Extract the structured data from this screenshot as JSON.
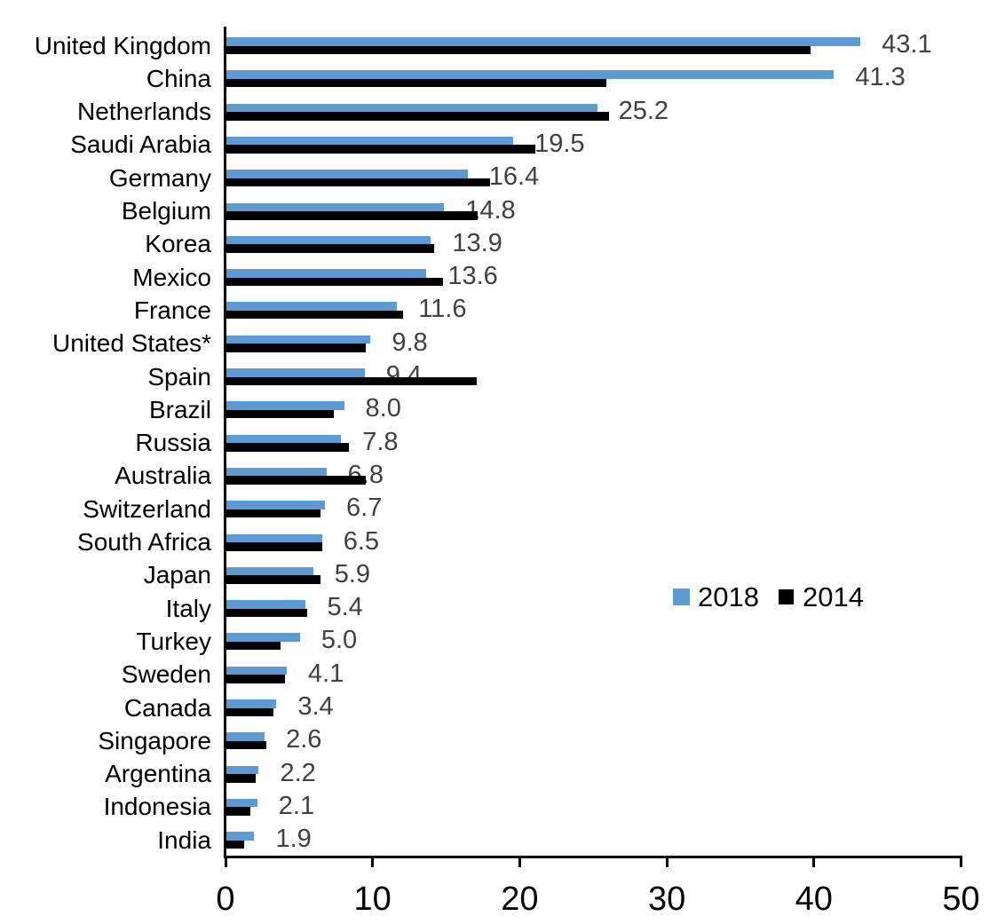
{
  "chart_data": {
    "type": "bar",
    "orientation": "horizontal",
    "title": "",
    "xlabel": "",
    "ylabel": "",
    "xlim": [
      0,
      50
    ],
    "x_ticks": [
      "0",
      "10",
      "20",
      "30",
      "40",
      "50"
    ],
    "grid": false,
    "legend_position": "middle-right",
    "categories": [
      "United Kingdom",
      "China",
      "Netherlands",
      "Saudi Arabia",
      "Germany",
      "Belgium",
      "Korea",
      "Mexico",
      "France",
      "United States*",
      "Spain",
      "Brazil",
      "Russia",
      "Australia",
      "Switzerland",
      "South Africa",
      "Japan",
      "Italy",
      "Turkey",
      "Sweden",
      "Canada",
      "Singapore",
      "Argentina",
      "Indonesia",
      "India"
    ],
    "series": [
      {
        "name": "2018",
        "color": "#5B9BD5",
        "values": [
          43.1,
          41.3,
          25.2,
          19.5,
          16.4,
          14.8,
          13.9,
          13.6,
          11.6,
          9.8,
          9.4,
          8.0,
          7.8,
          6.8,
          6.7,
          6.5,
          5.9,
          5.4,
          5.0,
          4.1,
          3.4,
          2.6,
          2.2,
          2.1,
          1.9
        ]
      },
      {
        "name": "2014",
        "color": "#000000",
        "values": [
          39.7,
          25.8,
          26.0,
          21.0,
          17.9,
          17.1,
          14.1,
          14.7,
          12.0,
          9.5,
          17.0,
          7.3,
          8.3,
          9.5,
          6.4,
          6.5,
          6.4,
          5.5,
          3.7,
          4.0,
          3.2,
          2.7,
          2.0,
          1.6,
          1.2
        ]
      }
    ],
    "data_labels": {
      "series": "2018",
      "color": "#404040",
      "values": [
        "43.1",
        "41.3",
        "25.2",
        "19.5",
        "16.4",
        "14.8",
        "13.9",
        "13.6",
        "11.6",
        "9.8",
        "9.4",
        "8.0",
        "7.8",
        "6.8",
        "6.7",
        "6.5",
        "5.9",
        "5.4",
        "5.0",
        "4.1",
        "3.4",
        "2.6",
        "2.2",
        "2.1",
        "1.9"
      ]
    },
    "axis_color": "#000000"
  }
}
